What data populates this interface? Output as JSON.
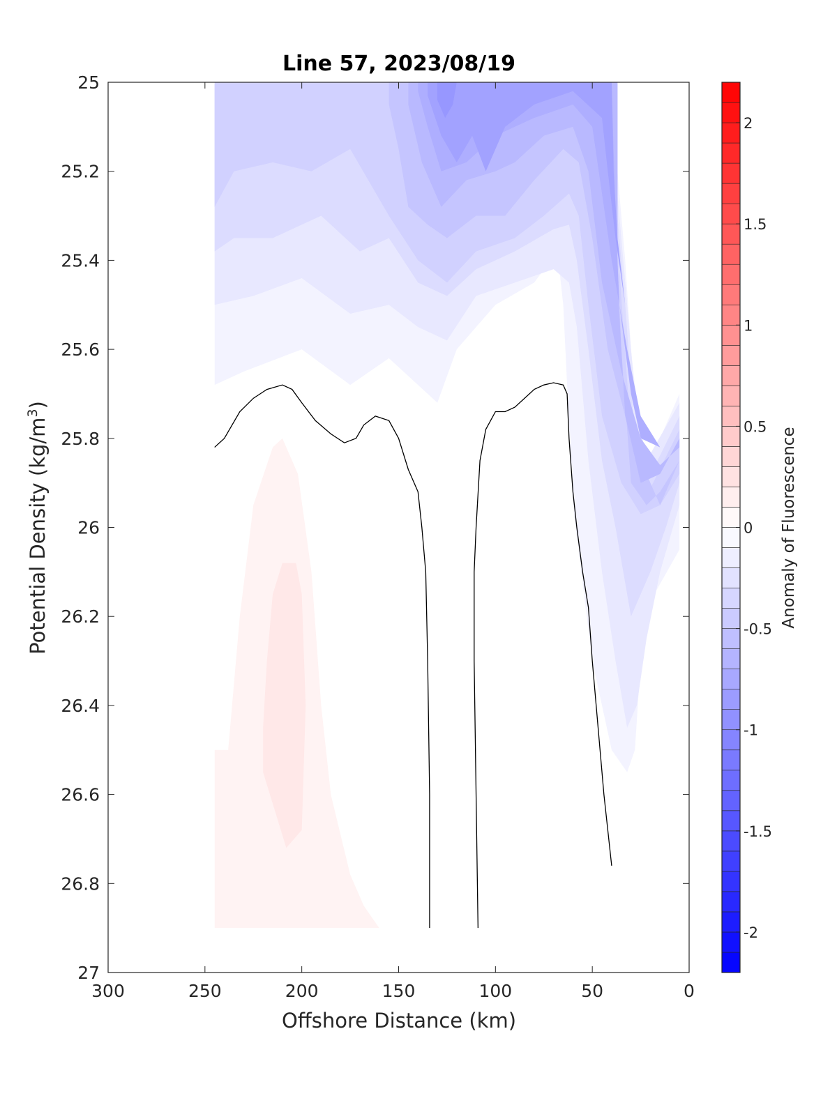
{
  "chart_data": {
    "type": "contour",
    "title": "Line 57, 2023/08/19",
    "xlabel": "Offshore Distance (km)",
    "ylabel_main": "Potential Density (kg/m",
    "ylabel_sup": "3",
    "ylabel_close": ")",
    "xlim": [
      300,
      0
    ],
    "ylim": [
      27,
      25
    ],
    "x_reversed": true,
    "y_reversed": true,
    "xticks": [
      300,
      250,
      200,
      150,
      100,
      50,
      0
    ],
    "xtick_labels": [
      "300",
      "250",
      "200",
      "150",
      "100",
      "50",
      "0"
    ],
    "yticks": [
      25,
      25.2,
      25.4,
      25.6,
      25.8,
      26,
      26.2,
      26.4,
      26.6,
      26.8,
      27
    ],
    "ytick_labels": [
      "25",
      "25.2",
      "25.4",
      "25.6",
      "25.8",
      "26",
      "26.2",
      "26.4",
      "26.6",
      "26.8",
      "27"
    ],
    "colorbar": {
      "label": "Anomaly of Fluorescence",
      "range": [
        -2.2,
        2.2
      ],
      "step": 0.1,
      "ticks": [
        -2,
        -1.5,
        -1,
        -0.5,
        0,
        0.5,
        1,
        1.5,
        2
      ],
      "tick_labels": [
        "-2",
        "-1.5",
        "-1",
        "-0.5",
        "0",
        "0.5",
        "1",
        "1.5",
        "2"
      ],
      "neg_color": "#0000ff",
      "pos_color": "#ff0000",
      "mid_color": "#ffffff"
    },
    "filled_regions": [
      {
        "name": "negative-band-0.1",
        "level": -0.1,
        "points": [
          [
            245,
            25
          ],
          [
            37,
            25
          ],
          [
            37,
            25.2
          ],
          [
            35,
            25.3
          ],
          [
            33,
            25.4
          ],
          [
            30,
            25.6
          ],
          [
            25,
            25.8
          ],
          [
            20,
            25.85
          ],
          [
            5,
            25.7
          ],
          [
            5,
            26.05
          ],
          [
            18,
            26.15
          ],
          [
            25,
            26.3
          ],
          [
            28,
            26.5
          ],
          [
            32,
            26.55
          ],
          [
            40,
            26.5
          ],
          [
            50,
            26.3
          ],
          [
            60,
            25.95
          ],
          [
            65,
            25.5
          ],
          [
            68,
            25.38
          ],
          [
            80,
            25.45
          ],
          [
            100,
            25.5
          ],
          [
            120,
            25.6
          ],
          [
            130,
            25.72
          ],
          [
            140,
            25.68
          ],
          [
            155,
            25.62
          ],
          [
            175,
            25.68
          ],
          [
            200,
            25.6
          ],
          [
            230,
            25.65
          ],
          [
            245,
            25.68
          ]
        ]
      },
      {
        "name": "negative-band-0.2",
        "level": -0.2,
        "points": [
          [
            245,
            25
          ],
          [
            37,
            25
          ],
          [
            37,
            25.25
          ],
          [
            33,
            25.45
          ],
          [
            28,
            25.7
          ],
          [
            22,
            25.85
          ],
          [
            5,
            25.72
          ],
          [
            5,
            25.95
          ],
          [
            15,
            26.1
          ],
          [
            22,
            26.25
          ],
          [
            27,
            26.4
          ],
          [
            32,
            26.45
          ],
          [
            38,
            26.3
          ],
          [
            45,
            26.1
          ],
          [
            52,
            25.85
          ],
          [
            58,
            25.55
          ],
          [
            62,
            25.45
          ],
          [
            70,
            25.42
          ],
          [
            90,
            25.45
          ],
          [
            110,
            25.48
          ],
          [
            125,
            25.58
          ],
          [
            140,
            25.55
          ],
          [
            155,
            25.5
          ],
          [
            175,
            25.52
          ],
          [
            200,
            25.44
          ],
          [
            225,
            25.48
          ],
          [
            245,
            25.5
          ]
        ]
      },
      {
        "name": "negative-band-0.3",
        "level": -0.3,
        "points": [
          [
            245,
            25
          ],
          [
            37,
            25
          ],
          [
            37,
            25.3
          ],
          [
            33,
            25.5
          ],
          [
            28,
            25.8
          ],
          [
            22,
            25.9
          ],
          [
            5,
            25.75
          ],
          [
            5,
            25.9
          ],
          [
            12,
            26.0
          ],
          [
            20,
            26.1
          ],
          [
            25,
            26.15
          ],
          [
            30,
            26.2
          ],
          [
            38,
            26.0
          ],
          [
            45,
            25.85
          ],
          [
            52,
            25.6
          ],
          [
            58,
            25.4
          ],
          [
            62,
            25.32
          ],
          [
            70,
            25.33
          ],
          [
            90,
            25.38
          ],
          [
            110,
            25.42
          ],
          [
            125,
            25.48
          ],
          [
            140,
            25.45
          ],
          [
            155,
            25.35
          ],
          [
            170,
            25.38
          ],
          [
            190,
            25.3
          ],
          [
            215,
            25.35
          ],
          [
            235,
            25.35
          ],
          [
            245,
            25.38
          ]
        ]
      },
      {
        "name": "negative-band-0.4",
        "level": -0.4,
        "points": [
          [
            245,
            25
          ],
          [
            37,
            25
          ],
          [
            37,
            25.35
          ],
          [
            34,
            25.55
          ],
          [
            29,
            25.85
          ],
          [
            22,
            25.93
          ],
          [
            5,
            25.78
          ],
          [
            5,
            25.88
          ],
          [
            15,
            25.95
          ],
          [
            25,
            25.97
          ],
          [
            35,
            25.9
          ],
          [
            45,
            25.75
          ],
          [
            52,
            25.5
          ],
          [
            57,
            25.3
          ],
          [
            62,
            25.25
          ],
          [
            75,
            25.3
          ],
          [
            90,
            25.35
          ],
          [
            110,
            25.38
          ],
          [
            125,
            25.45
          ],
          [
            140,
            25.4
          ],
          [
            155,
            25.3
          ],
          [
            175,
            25.15
          ],
          [
            195,
            25.2
          ],
          [
            215,
            25.18
          ],
          [
            235,
            25.2
          ],
          [
            245,
            25.28
          ]
        ]
      },
      {
        "name": "negative-band-0.5",
        "level": -0.5,
        "points": [
          [
            155,
            25
          ],
          [
            37,
            25
          ],
          [
            37,
            25.4
          ],
          [
            35,
            25.6
          ],
          [
            30,
            25.9
          ],
          [
            22,
            25.95
          ],
          [
            15,
            25.92
          ],
          [
            5,
            25.85
          ],
          [
            15,
            25.95
          ],
          [
            30,
            25.8
          ],
          [
            42,
            25.6
          ],
          [
            50,
            25.35
          ],
          [
            57,
            25.18
          ],
          [
            65,
            25.15
          ],
          [
            80,
            25.22
          ],
          [
            95,
            25.3
          ],
          [
            110,
            25.3
          ],
          [
            125,
            25.35
          ],
          [
            135,
            25.32
          ],
          [
            145,
            25.28
          ],
          [
            150,
            25.15
          ],
          [
            155,
            25.05
          ]
        ]
      },
      {
        "name": "negative-band-0.6",
        "level": -0.6,
        "points": [
          [
            145,
            25
          ],
          [
            37,
            25
          ],
          [
            37,
            25.45
          ],
          [
            33,
            25.75
          ],
          [
            25,
            25.9
          ],
          [
            15,
            25.88
          ],
          [
            5,
            25.8
          ],
          [
            5,
            25.82
          ],
          [
            15,
            25.86
          ],
          [
            25,
            25.8
          ],
          [
            35,
            25.65
          ],
          [
            45,
            25.45
          ],
          [
            52,
            25.2
          ],
          [
            60,
            25.1
          ],
          [
            75,
            25.12
          ],
          [
            90,
            25.18
          ],
          [
            100,
            25.2
          ],
          [
            115,
            25.22
          ],
          [
            128,
            25.28
          ],
          [
            138,
            25.18
          ],
          [
            145,
            25.05
          ]
        ]
      },
      {
        "name": "negative-band-0.7",
        "level": -0.7,
        "points": [
          [
            140,
            25
          ],
          [
            40,
            25
          ],
          [
            38,
            25.3
          ],
          [
            36,
            25.5
          ],
          [
            30,
            25.7
          ],
          [
            25,
            25.8
          ],
          [
            15,
            25.82
          ],
          [
            25,
            25.75
          ],
          [
            32,
            25.6
          ],
          [
            40,
            25.4
          ],
          [
            45,
            25.25
          ],
          [
            50,
            25.1
          ],
          [
            60,
            25.05
          ],
          [
            80,
            25.08
          ],
          [
            100,
            25.12
          ],
          [
            115,
            25.18
          ],
          [
            128,
            25.2
          ],
          [
            135,
            25.1
          ],
          [
            140,
            25.02
          ]
        ]
      },
      {
        "name": "negative-band-0.8",
        "level": -0.8,
        "points": [
          [
            135,
            25
          ],
          [
            40,
            25
          ],
          [
            39,
            25.2
          ],
          [
            37,
            25.35
          ],
          [
            33,
            25.5
          ],
          [
            38,
            25.35
          ],
          [
            42,
            25.2
          ],
          [
            45,
            25.08
          ],
          [
            60,
            25.02
          ],
          [
            80,
            25.05
          ],
          [
            95,
            25.1
          ],
          [
            105,
            25.2
          ],
          [
            112,
            25.12
          ],
          [
            120,
            25.18
          ],
          [
            128,
            25.12
          ],
          [
            135,
            25.03
          ]
        ]
      },
      {
        "name": "negative-band-0.9",
        "level": -0.9,
        "points": [
          [
            130,
            25
          ],
          [
            120,
            25
          ],
          [
            122,
            25.05
          ],
          [
            126,
            25.08
          ],
          [
            130,
            25.04
          ]
        ]
      },
      {
        "name": "positive-band-0.1",
        "level": 0.1,
        "points": [
          [
            245,
            26.9
          ],
          [
            160,
            26.9
          ],
          [
            168,
            26.85
          ],
          [
            175,
            26.78
          ],
          [
            185,
            26.6
          ],
          [
            190,
            26.4
          ],
          [
            195,
            26.1
          ],
          [
            202,
            25.88
          ],
          [
            210,
            25.8
          ],
          [
            215,
            25.82
          ],
          [
            225,
            25.95
          ],
          [
            232,
            26.2
          ],
          [
            238,
            26.5
          ],
          [
            245,
            26.5
          ]
        ]
      },
      {
        "name": "positive-band-0.2",
        "level": 0.2,
        "points": [
          [
            220,
            26.55
          ],
          [
            208,
            26.72
          ],
          [
            200,
            26.68
          ],
          [
            198,
            26.4
          ],
          [
            200,
            26.15
          ],
          [
            203,
            26.08
          ],
          [
            210,
            26.08
          ],
          [
            215,
            26.15
          ],
          [
            218,
            26.3
          ],
          [
            220,
            26.45
          ]
        ]
      }
    ],
    "zero_contours": [
      {
        "name": "zero-contour-offshore",
        "points": [
          [
            245,
            25.82
          ],
          [
            240,
            25.8
          ],
          [
            232,
            25.74
          ],
          [
            225,
            25.71
          ],
          [
            218,
            25.69
          ],
          [
            210,
            25.68
          ],
          [
            205,
            25.69
          ],
          [
            200,
            25.72
          ],
          [
            193,
            25.76
          ],
          [
            185,
            25.79
          ],
          [
            178,
            25.81
          ],
          [
            172,
            25.8
          ],
          [
            168,
            25.77
          ],
          [
            162,
            25.75
          ],
          [
            155,
            25.76
          ],
          [
            150,
            25.8
          ],
          [
            145,
            25.87
          ],
          [
            140,
            25.92
          ],
          [
            138,
            26.0
          ],
          [
            136,
            26.1
          ],
          [
            135,
            26.3
          ],
          [
            134,
            26.6
          ],
          [
            134,
            26.9
          ]
        ]
      },
      {
        "name": "zero-contour-inshore",
        "points": [
          [
            109,
            26.9
          ],
          [
            110,
            26.6
          ],
          [
            111,
            26.3
          ],
          [
            111,
            26.1
          ],
          [
            110,
            26.0
          ],
          [
            108,
            25.85
          ],
          [
            105,
            25.78
          ],
          [
            100,
            25.74
          ],
          [
            95,
            25.74
          ],
          [
            90,
            25.73
          ],
          [
            85,
            25.71
          ],
          [
            80,
            25.69
          ],
          [
            75,
            25.68
          ],
          [
            70,
            25.675
          ],
          [
            65,
            25.68
          ],
          [
            63,
            25.7
          ],
          [
            62,
            25.8
          ],
          [
            60,
            25.92
          ],
          [
            58,
            26.0
          ],
          [
            55,
            26.1
          ],
          [
            52,
            26.18
          ],
          [
            50,
            26.3
          ],
          [
            47,
            26.45
          ],
          [
            44,
            26.6
          ],
          [
            41,
            26.72
          ],
          [
            40,
            26.76
          ]
        ]
      }
    ]
  }
}
